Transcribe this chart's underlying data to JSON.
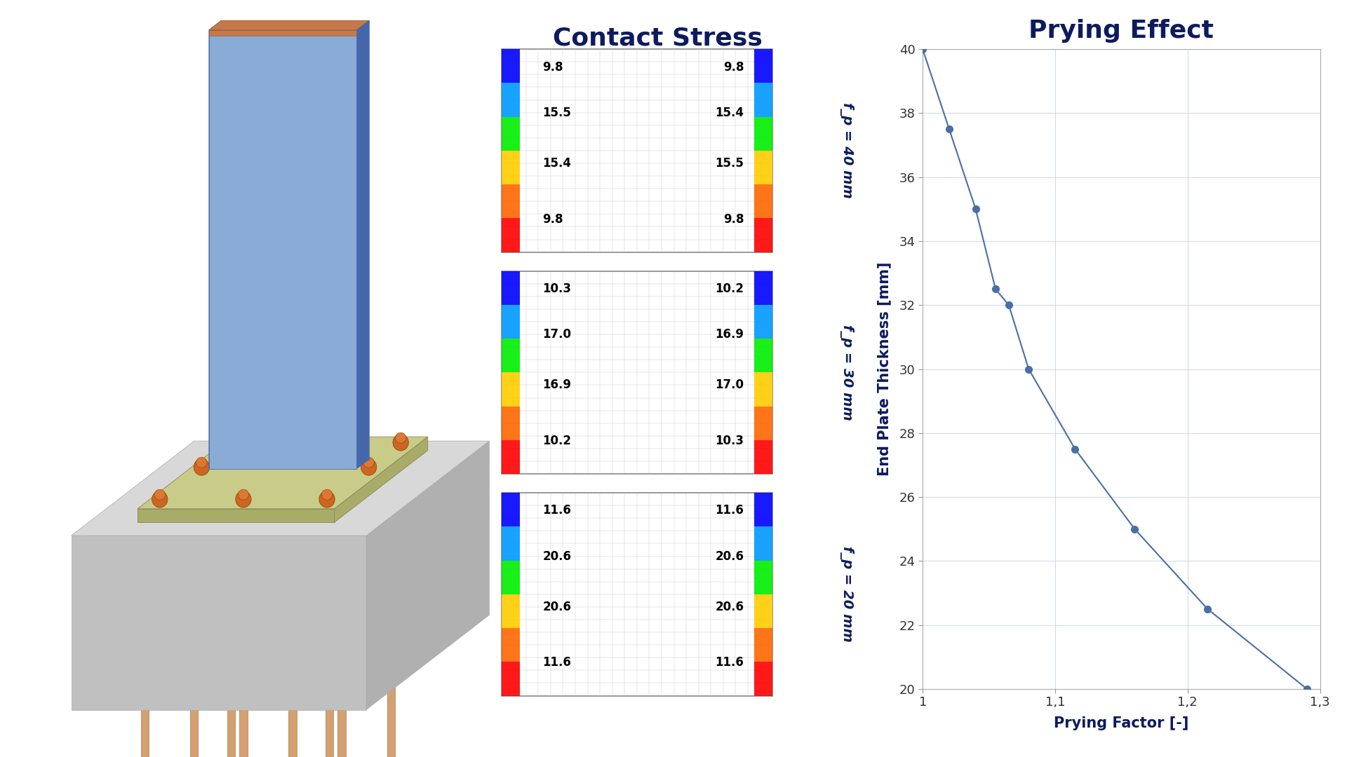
{
  "title_contact": "Contact Stress",
  "title_prying": "Prying Effect",
  "title_color": "#0d1b5e",
  "background_color": "#ffffff",
  "panel_labels": [
    "f_p = 40 mm",
    "f_p = 30 mm",
    "f_p = 20 mm"
  ],
  "stress_values": [
    {
      "tl": "9.8",
      "tr": "9.8",
      "ml": "15.5",
      "mr": "15.4",
      "bl2": "15.4",
      "br2": "15.5",
      "bl": "9.8",
      "br": "9.8"
    },
    {
      "tl": "10.3",
      "tr": "10.2",
      "ml": "17.0",
      "mr": "16.9",
      "bl2": "16.9",
      "br2": "17.0",
      "bl": "10.2",
      "br": "10.3"
    },
    {
      "tl": "11.6",
      "tr": "11.6",
      "ml": "20.6",
      "mr": "20.6",
      "bl2": "20.6",
      "br2": "20.6",
      "bl": "11.6",
      "br": "11.6"
    }
  ],
  "prying_x": [
    1.0,
    1.02,
    1.04,
    1.055,
    1.065,
    1.08,
    1.115,
    1.16,
    1.215,
    1.29
  ],
  "prying_y": [
    40,
    37.5,
    35,
    32.5,
    32,
    30,
    27.5,
    25,
    22.5,
    20
  ],
  "plot_color": "#4a6fa5",
  "axis_label_color": "#0d1b5e",
  "xlabel": "Prying Factor [-]",
  "ylabel": "End Plate Thickness [mm]",
  "xlim": [
    1.0,
    1.3
  ],
  "ylim": [
    20,
    40
  ],
  "xticks": [
    1.0,
    1.1,
    1.2,
    1.3
  ],
  "xtick_labels": [
    "1",
    "1,1",
    "1,2",
    "1,3"
  ],
  "yticks": [
    20,
    22,
    24,
    26,
    28,
    30,
    32,
    34,
    36,
    38,
    40
  ],
  "grid_color": "#d0dde8",
  "arrow_color": "#3399cc",
  "col_blue_light": "#8aabd6",
  "col_blue_mid": "#6688bb",
  "col_blue_dark": "#4466aa",
  "col_brown_top": "#c87848",
  "col_plate_top": "#c8cc88",
  "col_plate_side": "#a8ac68",
  "col_block_top": "#d8d8d8",
  "col_block_front": "#c0c0c0",
  "col_block_right": "#b0b0b0",
  "col_pile": "#d4a070",
  "col_bolt": "#cc6622"
}
